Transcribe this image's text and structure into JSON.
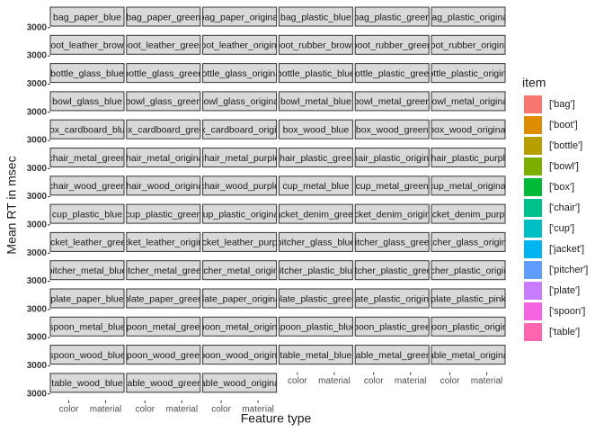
{
  "chart_data": {
    "type": "bar",
    "xlabel": "Feature type",
    "ylabel": "Mean RT in msec",
    "categories": [
      "color",
      "material"
    ],
    "ylim": [
      2200,
      3200
    ],
    "yticks": [
      3000
    ],
    "facets": [
      "bag_paper_blue",
      "bag_paper_green",
      "bag_paper_original",
      "bag_plastic_blue",
      "bag_plastic_green",
      "bag_plastic_original",
      "boot_leather_brown",
      "boot_leather_green",
      "boot_leather_original",
      "boot_rubber_brown",
      "boot_rubber_green",
      "boot_rubber_original",
      "bottle_glass_blue",
      "bottle_glass_green",
      "bottle_glass_original",
      "bottle_plastic_blue",
      "bottle_plastic_green",
      "bottle_plastic_original",
      "bowl_glass_blue",
      "bowl_glass_green",
      "bowl_glass_original",
      "bowl_metal_blue",
      "bowl_metal_green",
      "bowl_metal_original",
      "box_cardboard_blue",
      "box_cardboard_green",
      "box_cardboard_original",
      "box_wood_blue",
      "box_wood_green",
      "box_wood_original",
      "chair_metal_green",
      "chair_metal_original",
      "chair_metal_purple",
      "chair_plastic_green",
      "chair_plastic_original",
      "chair_plastic_purple",
      "chair_wood_green",
      "chair_wood_original",
      "chair_wood_purple",
      "cup_metal_blue",
      "cup_metal_green",
      "cup_metal_original",
      "cup_plastic_blue",
      "cup_plastic_green",
      "cup_plastic_original",
      "jacket_denim_green",
      "jacket_denim_original",
      "jacket_denim_purple",
      "jacket_leather_green",
      "jacket_leather_original",
      "jacket_leather_purple",
      "pitcher_glass_blue",
      "pitcher_glass_green",
      "pitcher_glass_original",
      "pitcher_metal_blue",
      "pitcher_metal_green",
      "pitcher_metal_original",
      "pitcher_plastic_blue",
      "pitcher_plastic_green",
      "pitcher_plastic_original",
      "plate_paper_blue",
      "plate_paper_green",
      "plate_paper_original",
      "plate_plastic_green",
      "plate_plastic_original",
      "plate_plastic_pink",
      "spoon_metal_blue",
      "spoon_metal_green",
      "spoon_metal_original",
      "spoon_plastic_blue",
      "spoon_plastic_green",
      "spoon_plastic_original",
      "spoon_wood_blue",
      "spoon_wood_green",
      "spoon_wood_original",
      "table_metal_blue",
      "table_metal_green",
      "table_metal_original",
      "table_wood_blue",
      "table_wood_green",
      "table_wood_original"
    ],
    "legend": {
      "title": "item",
      "items": [
        {
          "name": "['bag']",
          "color": "#F8766D"
        },
        {
          "name": "['boot']",
          "color": "#DE8C00"
        },
        {
          "name": "['bottle']",
          "color": "#B79F00"
        },
        {
          "name": "['bowl']",
          "color": "#7CAE00"
        },
        {
          "name": "['box']",
          "color": "#00BA38"
        },
        {
          "name": "['chair']",
          "color": "#00C08B"
        },
        {
          "name": "['cup']",
          "color": "#00BFC4"
        },
        {
          "name": "['jacket']",
          "color": "#00B4F0"
        },
        {
          "name": "['pitcher']",
          "color": "#619CFF"
        },
        {
          "name": "['plate']",
          "color": "#C77CFF"
        },
        {
          "name": "['spoon']",
          "color": "#F564E3"
        },
        {
          "name": "['table']",
          "color": "#FF64B0"
        }
      ]
    }
  }
}
